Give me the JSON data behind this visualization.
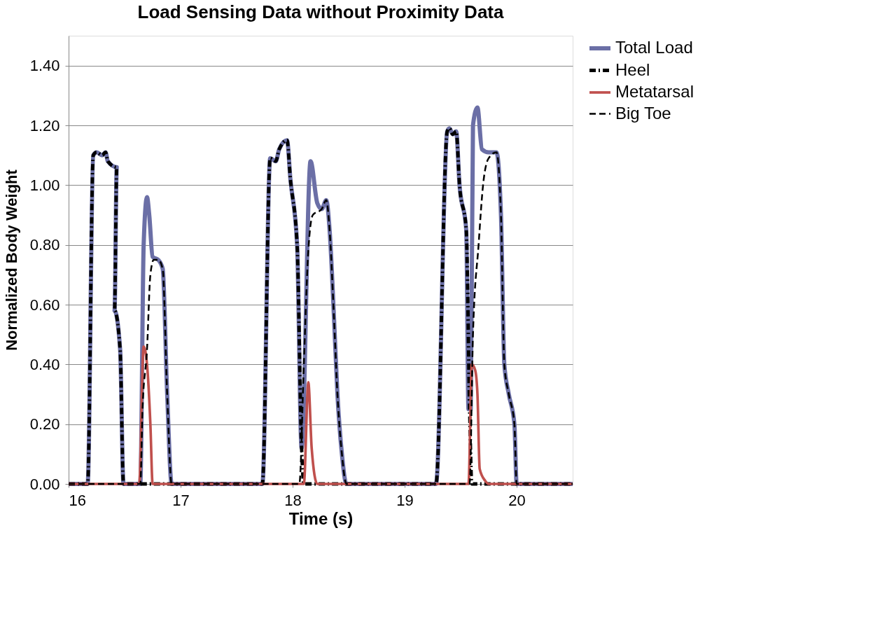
{
  "chart_data": {
    "type": "line",
    "title": "Load Sensing Data without Proximity Data",
    "xlabel": "Time (s)",
    "ylabel": "Normalized Body Weight",
    "xlim": [
      16,
      20.5
    ],
    "xticks": [
      16,
      17,
      18,
      19,
      20
    ],
    "ylim": [
      0,
      1.5
    ],
    "yticks": [
      {
        "value": 0,
        "label": "0.00"
      },
      {
        "value": 0.2,
        "label": "0.20"
      },
      {
        "value": 0.4,
        "label": "0.40"
      },
      {
        "value": 0.6,
        "label": "0.60"
      },
      {
        "value": 0.8,
        "label": "0.80"
      },
      {
        "value": 1.0,
        "label": "1.00"
      },
      {
        "value": 1.2,
        "label": "1.20"
      },
      {
        "value": 1.4,
        "label": "1.40"
      }
    ],
    "grid": "y",
    "legend": "right",
    "marker": "none",
    "series": [
      {
        "name": "Total Load",
        "color": "#6b6fa6",
        "line_style": "solid",
        "x": [
          16.0,
          16.17,
          16.22,
          16.25,
          16.3,
          16.33,
          16.35,
          16.43,
          16.41,
          16.46,
          16.49,
          16.64,
          16.67,
          16.7,
          16.72,
          16.75,
          16.8,
          16.84,
          16.88,
          16.92,
          17.73,
          17.8,
          17.85,
          17.88,
          17.95,
          17.98,
          18.04,
          18.08,
          18.16,
          18.22,
          18.26,
          18.3,
          18.33,
          18.37,
          18.4,
          18.44,
          18.48,
          19.28,
          19.38,
          19.4,
          19.43,
          19.46,
          19.49,
          19.55,
          19.57,
          19.59,
          19.61,
          19.65,
          19.69,
          19.75,
          19.82,
          19.86,
          19.89,
          19.93,
          19.98,
          20.0,
          20.5
        ],
        "values": [
          0,
          0,
          1.1,
          1.11,
          1.1,
          1.11,
          1.08,
          1.06,
          0.58,
          0.45,
          0,
          0,
          0.8,
          0.96,
          0.9,
          0.76,
          0.75,
          0.72,
          0.3,
          0,
          0,
          1.09,
          1.08,
          1.12,
          1.15,
          1.02,
          0.8,
          0.12,
          1.08,
          0.94,
          0.92,
          0.95,
          0.85,
          0.55,
          0.3,
          0.1,
          0,
          0,
          1.18,
          1.19,
          1.17,
          1.18,
          1.0,
          0.85,
          0.25,
          0.25,
          1.2,
          1.26,
          1.12,
          1.11,
          1.11,
          0.9,
          0.4,
          0.3,
          0.2,
          0,
          0
        ]
      },
      {
        "name": "Heel",
        "color": "#000000",
        "line_style": "dashdot",
        "x": [
          16.0,
          16.17,
          16.22,
          16.25,
          16.3,
          16.33,
          16.35,
          16.43,
          16.41,
          16.46,
          16.49,
          17.73,
          17.8,
          17.85,
          17.88,
          17.95,
          17.98,
          18.04,
          18.08,
          18.1,
          19.28,
          19.38,
          19.4,
          19.43,
          19.46,
          19.49,
          19.55,
          19.58,
          19.6,
          20.5
        ],
        "values": [
          0,
          0,
          1.1,
          1.11,
          1.1,
          1.11,
          1.08,
          1.06,
          0.58,
          0.45,
          0,
          0,
          1.09,
          1.08,
          1.12,
          1.15,
          1.02,
          0.8,
          0.12,
          0,
          0,
          1.18,
          1.19,
          1.17,
          1.18,
          1.0,
          0.85,
          0.25,
          0,
          0
        ]
      },
      {
        "name": "Metatarsal",
        "color": "#c0504d",
        "line_style": "solid",
        "x": [
          16.0,
          16.63,
          16.67,
          16.7,
          16.73,
          16.75,
          18.1,
          18.14,
          18.17,
          18.22,
          19.57,
          19.6,
          19.63,
          19.65,
          19.67,
          19.72,
          19.75,
          20.5
        ],
        "values": [
          0,
          0,
          0.46,
          0.4,
          0.2,
          0,
          0,
          0.34,
          0.12,
          0,
          0,
          0.4,
          0.38,
          0.3,
          0.05,
          0.01,
          0,
          0
        ]
      },
      {
        "name": "Big Toe",
        "color": "#000000",
        "line_style": "dashed",
        "x": [
          16.0,
          16.64,
          16.66,
          16.7,
          16.73,
          16.76,
          16.8,
          16.84,
          16.88,
          16.92,
          18.06,
          18.1,
          18.14,
          18.18,
          18.26,
          18.3,
          18.33,
          18.37,
          18.4,
          18.44,
          18.48,
          19.58,
          19.61,
          19.66,
          19.7,
          19.75,
          19.82,
          19.86,
          19.89,
          19.93,
          19.98,
          20.0,
          20.5
        ],
        "values": [
          0,
          0,
          0.25,
          0.45,
          0.7,
          0.75,
          0.75,
          0.72,
          0.3,
          0,
          0,
          0.4,
          0.78,
          0.9,
          0.92,
          0.95,
          0.85,
          0.55,
          0.3,
          0.1,
          0,
          0,
          0.5,
          0.8,
          1.0,
          1.09,
          1.11,
          0.9,
          0.4,
          0.3,
          0.2,
          0,
          0
        ]
      }
    ]
  }
}
